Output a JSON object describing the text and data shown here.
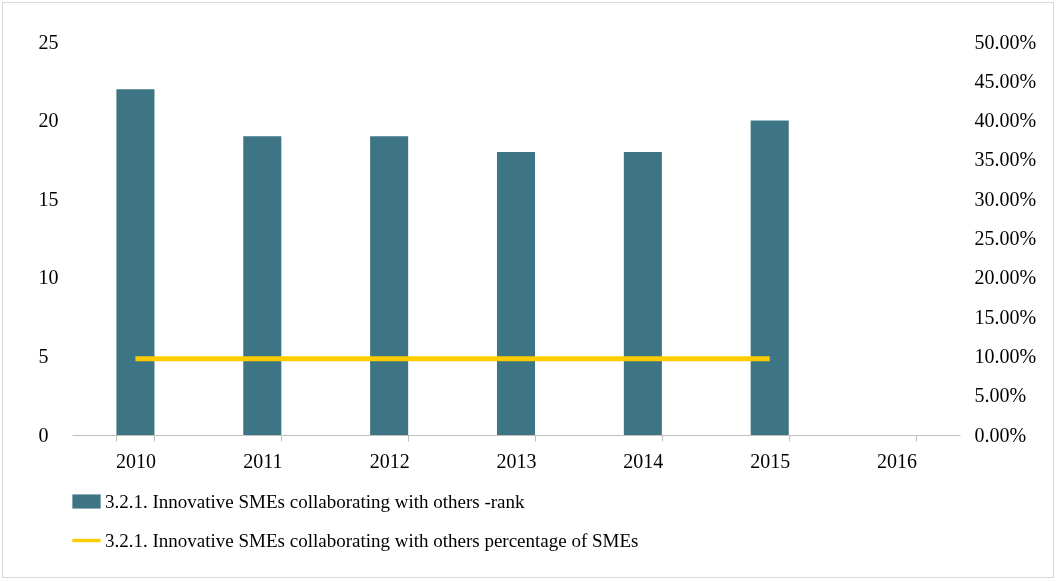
{
  "chart_data": {
    "type": "bar",
    "categories": [
      "2010",
      "2011",
      "2012",
      "2013",
      "2014",
      "2015",
      "2016"
    ],
    "series": [
      {
        "name": "3.2.1. Innovative SMEs collaborating with others -rank",
        "color": "#3d7585",
        "values": [
          22,
          19,
          19,
          18,
          18,
          20,
          null
        ]
      },
      {
        "name": "3.2.1. Innovative SMEs collaborating with others percentage of SMEs",
        "type": "line",
        "axis": "y2",
        "color": "#ffcc00",
        "values": [
          9.7,
          9.7,
          9.7,
          9.7,
          9.7,
          9.7,
          null
        ]
      }
    ],
    "ylim": [
      0,
      25
    ],
    "yticks": [
      0,
      5,
      10,
      15,
      20,
      25
    ],
    "y2lim": [
      0,
      50
    ],
    "y2ticks": [
      {
        "value": 0,
        "label": "0.00%"
      },
      {
        "value": 5,
        "label": "5.00%"
      },
      {
        "value": 10,
        "label": "10.00%"
      },
      {
        "value": 15,
        "label": "15.00%"
      },
      {
        "value": 20,
        "label": "20.00%"
      },
      {
        "value": 25,
        "label": "25.00%"
      },
      {
        "value": 30,
        "label": "30.00%"
      },
      {
        "value": 35,
        "label": "35.00%"
      },
      {
        "value": 40,
        "label": "40.00%"
      },
      {
        "value": 45,
        "label": "45.00%"
      },
      {
        "value": 50,
        "label": "50.00%"
      }
    ],
    "grid": false,
    "legend": "bottom"
  }
}
